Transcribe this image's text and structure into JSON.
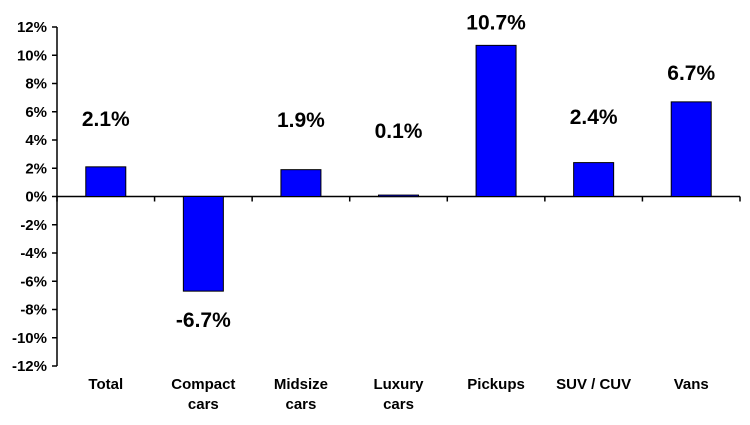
{
  "chart_data": {
    "type": "bar",
    "categories": [
      [
        "Total"
      ],
      [
        "Compact",
        "cars"
      ],
      [
        "Midsize",
        "cars"
      ],
      [
        "Luxury",
        "cars"
      ],
      [
        "Pickups"
      ],
      [
        "SUV / CUV"
      ],
      [
        "Vans"
      ]
    ],
    "values": [
      2.1,
      -6.7,
      1.9,
      0.1,
      10.7,
      2.4,
      6.7
    ],
    "data_labels": [
      "2.1%",
      "-6.7%",
      "1.9%",
      "0.1%",
      "10.7%",
      "2.4%",
      "6.7%"
    ],
    "ylim": [
      -12,
      12
    ],
    "yticks": [
      12,
      10,
      8,
      6,
      4,
      2,
      0,
      -2,
      -4,
      -6,
      -8,
      -10,
      -12
    ],
    "ytick_labels": [
      "12%",
      "10%",
      "8%",
      "6%",
      "4%",
      "2%",
      "0%",
      "-2%",
      "-4%",
      "-6%",
      "-8%",
      "-10%",
      "-12%"
    ],
    "title": "",
    "xlabel": "",
    "ylabel": "",
    "grid": false,
    "legend": false,
    "colors": {
      "bar_fill": "#0000ff",
      "bar_stroke": "#000000",
      "axis": "#000000",
      "background": "#ffffff"
    }
  }
}
